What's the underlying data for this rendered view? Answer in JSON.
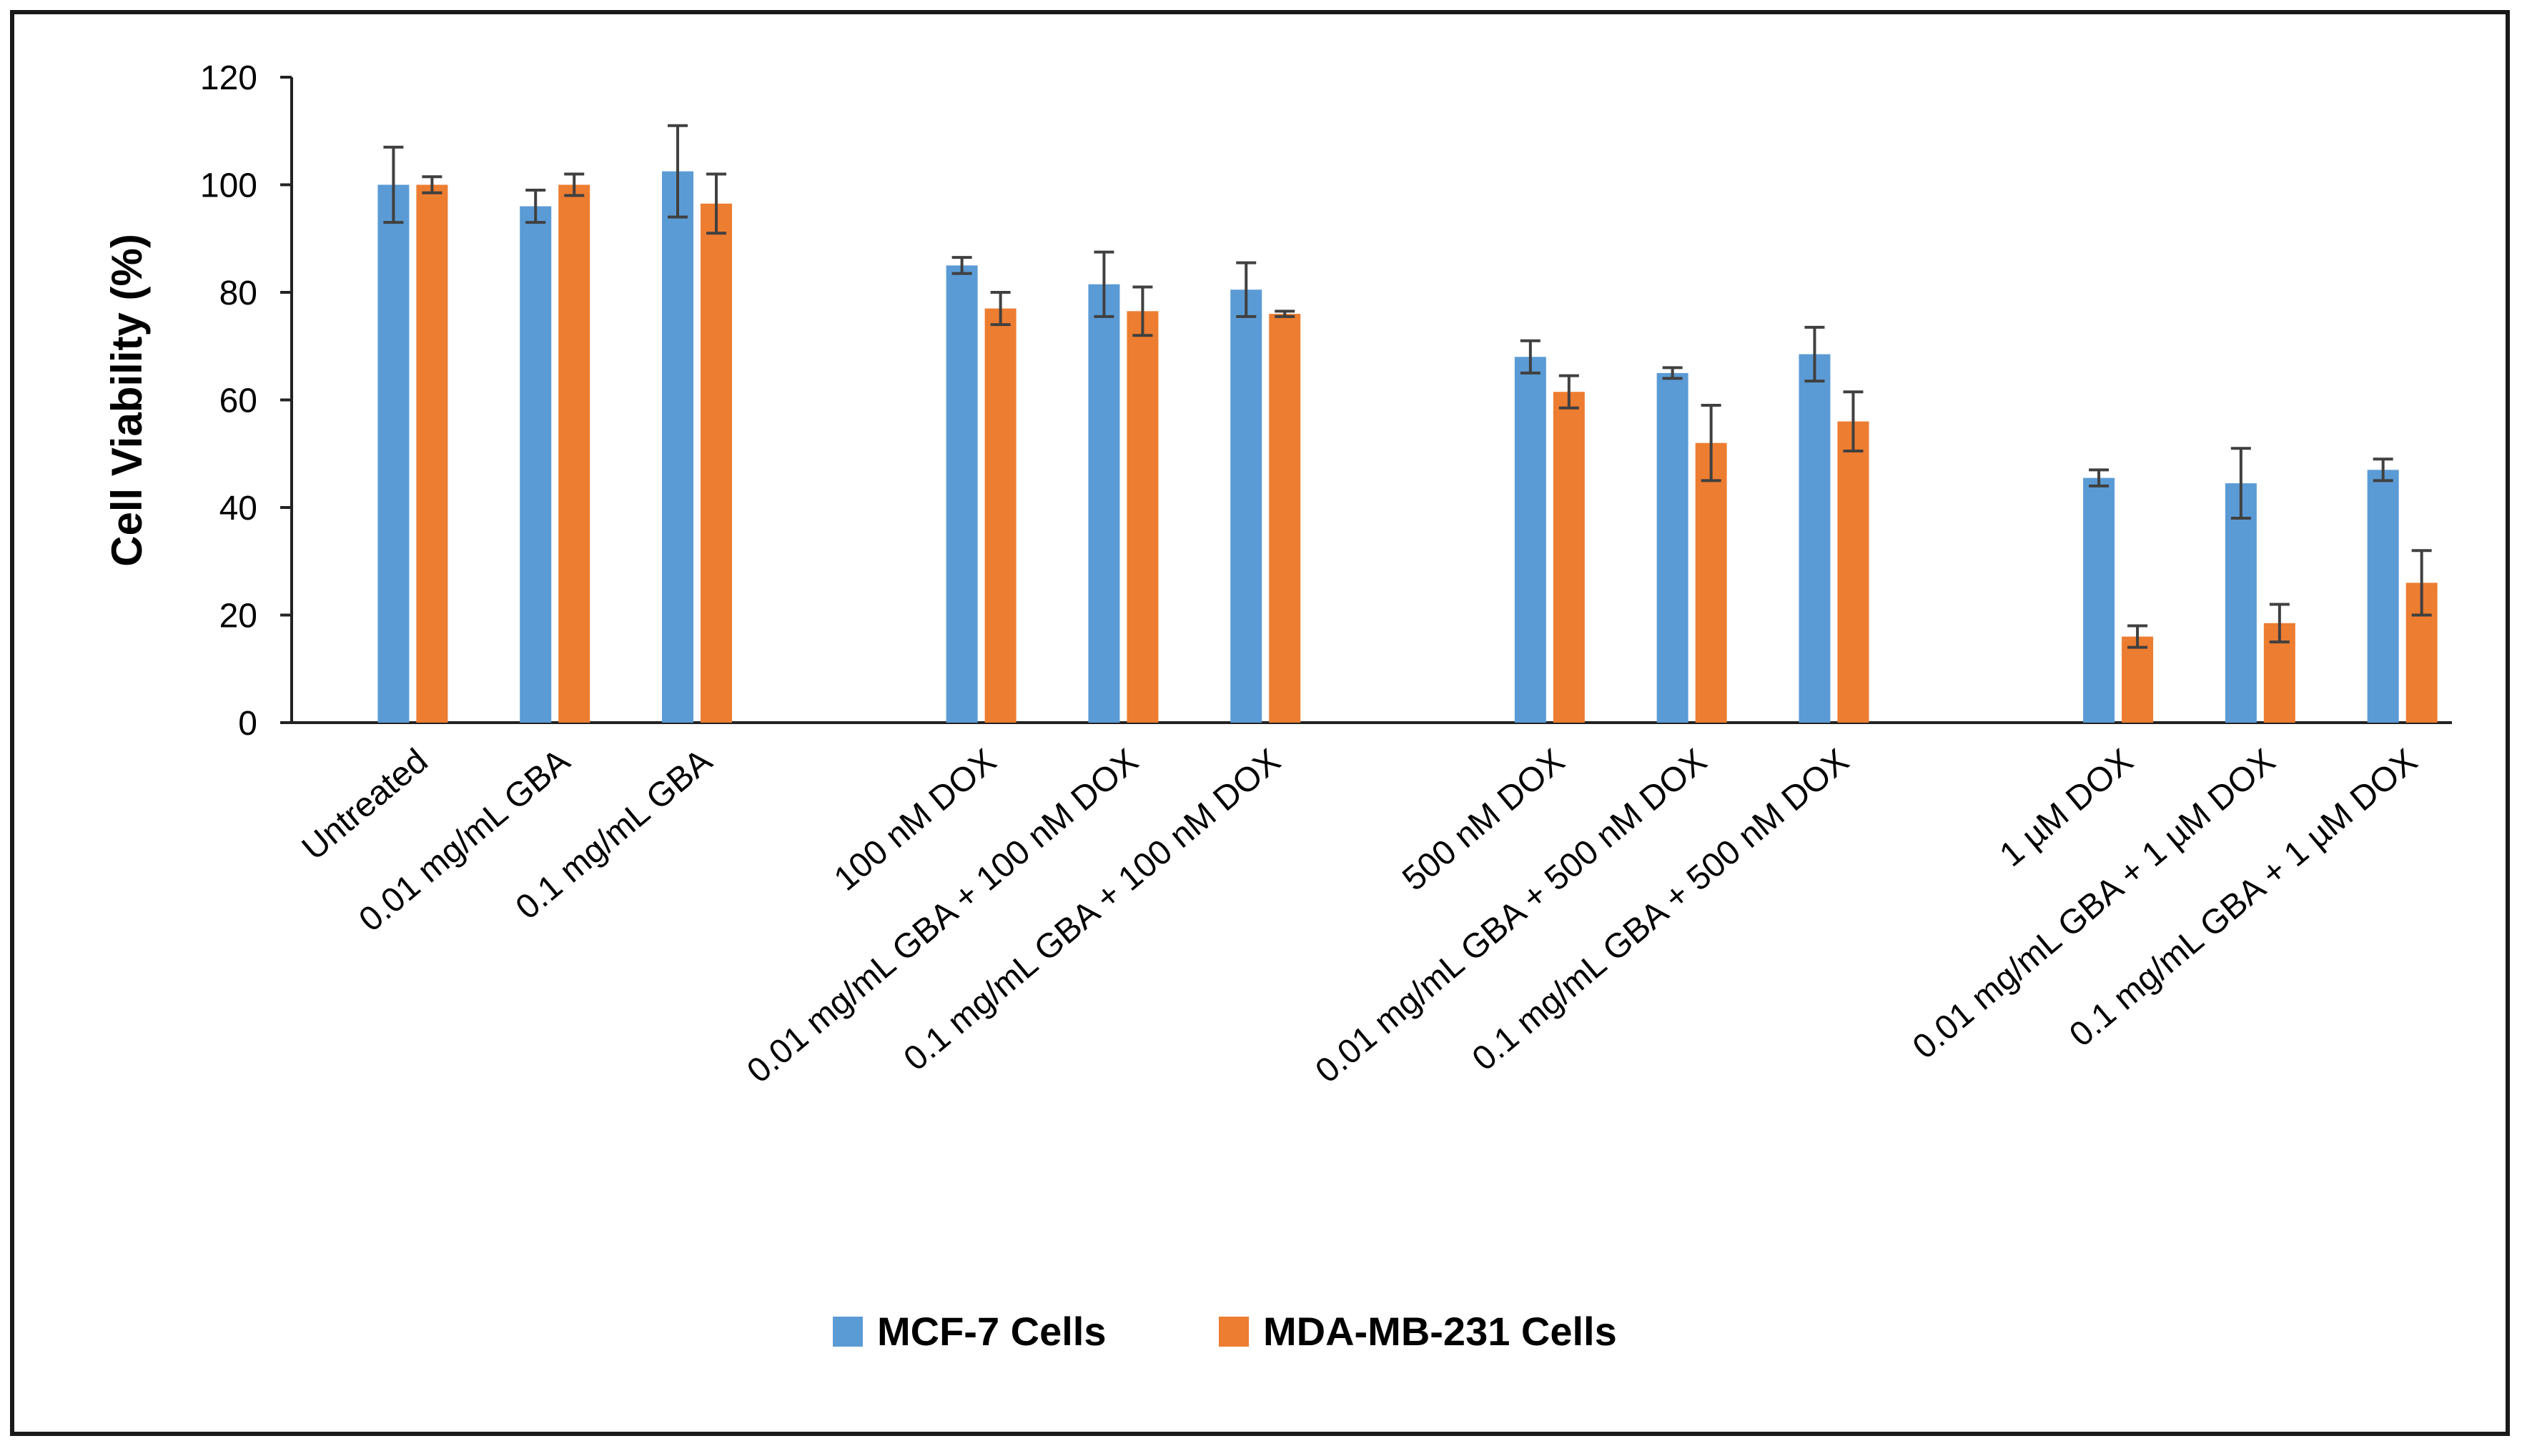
{
  "chart_data": {
    "type": "bar",
    "title": "",
    "xlabel": "",
    "ylabel": "Cell Viability (%)",
    "ylim": [
      0,
      120
    ],
    "yticks": [
      0,
      20,
      40,
      60,
      80,
      100,
      120
    ],
    "grid": false,
    "legend_position": "bottom",
    "categories": [
      "Untreated",
      "0.01 mg/mL GBA",
      "0.1 mg/mL GBA",
      "100 nM DOX",
      "0.01 mg/mL GBA + 100 nM DOX",
      "0.1 mg/mL GBA + 100 nM DOX",
      "500 nM DOX",
      "0.01 mg/mL GBA + 500 nM DOX",
      "0.1 mg/mL GBA + 500 nM DOX",
      "1 µM DOX",
      "0.01 mg/mL GBA + 1 µM DOX",
      "0.1 mg/mL GBA + 1 µM DOX"
    ],
    "groups": [
      [
        0,
        1,
        2
      ],
      [
        3,
        4,
        5
      ],
      [
        6,
        7,
        8
      ],
      [
        9,
        10,
        11
      ]
    ],
    "series": [
      {
        "name": "MCF-7 Cells",
        "color": "#5b9bd5",
        "values": [
          100,
          96,
          102.5,
          85,
          81.5,
          80.5,
          68,
          65,
          68.5,
          45.5,
          44.5,
          47
        ],
        "errors": [
          7,
          3,
          8.5,
          1.5,
          6,
          5,
          3,
          1,
          5,
          1.5,
          6.5,
          2
        ]
      },
      {
        "name": "MDA-MB-231 Cells",
        "color": "#ed7d31",
        "values": [
          100,
          100,
          96.5,
          77,
          76.5,
          76,
          61.5,
          52,
          56,
          16,
          18.5,
          26
        ],
        "errors": [
          1.5,
          2,
          5.5,
          3,
          4.5,
          0.5,
          3,
          7,
          5.5,
          2,
          3.5,
          6
        ]
      }
    ]
  }
}
